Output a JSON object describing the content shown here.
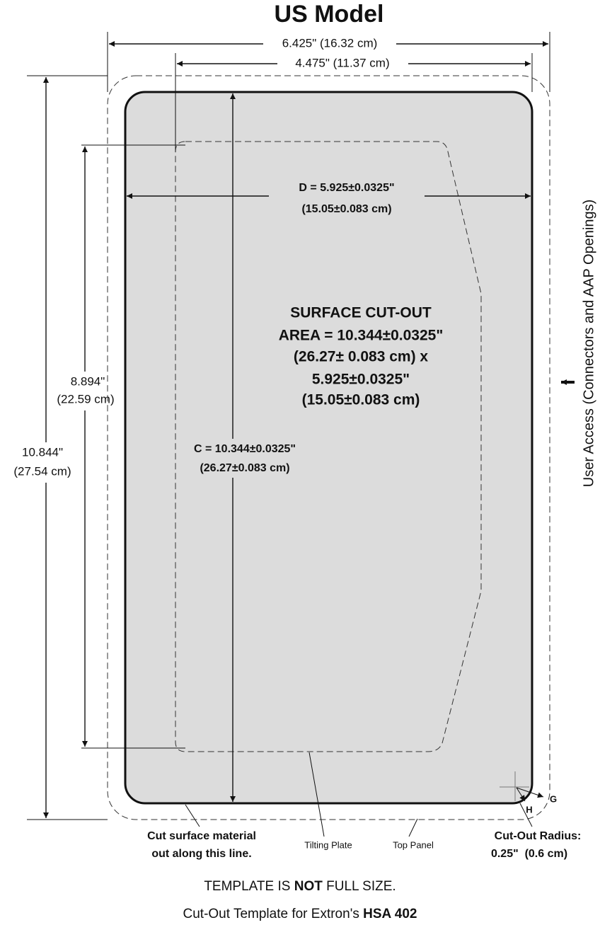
{
  "title": "US Model",
  "dimensions": {
    "overall_width": "6.425\" (16.32 cm)",
    "plate_width": "4.475\" (11.37 cm)",
    "d_width": [
      "D = 5.925±0.0325\"",
      "(15.05±0.083 cm)"
    ],
    "c_height": [
      "C = 10.344±0.0325\"",
      "(26.27±0.083 cm)"
    ],
    "plate_height": [
      "8.894\"",
      "(22.59 cm)"
    ],
    "overall_height": [
      "10.844\"",
      "(27.54 cm)"
    ]
  },
  "cutout_area": [
    "SURFACE CUT-OUT",
    "AREA = 10.344±0.0325\"",
    "(26.27± 0.083 cm) x",
    "5.925±0.0325\"",
    "(15.05±0.083 cm)"
  ],
  "side_label": "User Access (Connectors and AAP Openings)",
  "corner_labels": {
    "g": "G",
    "h": "H"
  },
  "callouts": {
    "cut_line": [
      "Cut surface material",
      "out along this line."
    ],
    "tilting_plate": "Tilting Plate",
    "top_panel": "Top Panel",
    "radius": [
      "Cut-Out Radius:",
      "0.25\"  (0.6 cm)"
    ]
  },
  "footer": {
    "note": [
      "TEMPLATE IS ",
      "NOT",
      " FULL SIZE."
    ],
    "caption": [
      "Cut-Out Template for Extron's ",
      "HSA 402"
    ]
  }
}
